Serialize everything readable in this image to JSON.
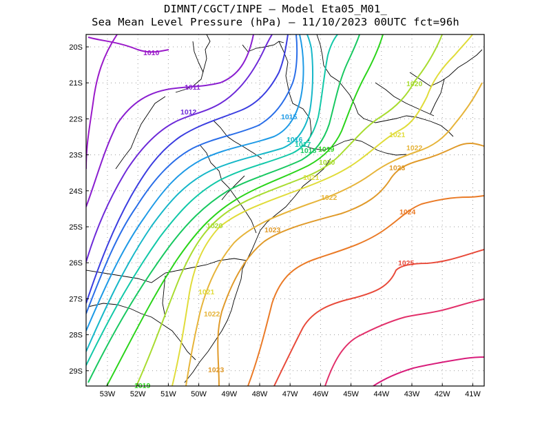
{
  "header": {
    "line1": "DIMNT/CGCT/INPE –  Model Eta05_M01_",
    "line2": "Sea Mean Level Pressure (hPa) – 11/10/2023 00UTC fct=96h"
  },
  "map": {
    "lon_labels": [
      "53W",
      "52W",
      "51W",
      "50W",
      "49W",
      "48W",
      "47W",
      "46W",
      "45W",
      "44W",
      "43W",
      "42W",
      "41W"
    ],
    "lat_labels": [
      "20S",
      "21S",
      "22S",
      "23S",
      "24S",
      "25S",
      "26S",
      "27S",
      "28S",
      "29S"
    ],
    "grid": "dotted"
  },
  "contours": [
    {
      "level": "1010",
      "color": "#9a19c9"
    },
    {
      "level": "1011",
      "color": "#8a1fd0"
    },
    {
      "level": "1012",
      "color": "#6d2ad8"
    },
    {
      "level": "1013",
      "color": "#3a3de0"
    },
    {
      "level": "1014",
      "color": "#2a6ee8"
    },
    {
      "level": "1015",
      "color": "#1e9ae6"
    },
    {
      "level": "1016",
      "color": "#16b7c8"
    },
    {
      "level": "1017",
      "color": "#12c8a8"
    },
    {
      "level": "1018",
      "color": "#18c860"
    },
    {
      "level": "1019",
      "color": "#2ad41a"
    },
    {
      "level": "1020",
      "color": "#a8dc30"
    },
    {
      "level": "1021",
      "color": "#e0dc3a"
    },
    {
      "level": "1022",
      "color": "#e6b43a"
    },
    {
      "level": "1023",
      "color": "#e09a2a"
    },
    {
      "level": "1024",
      "color": "#ea7a26"
    },
    {
      "level": "1025",
      "color": "#e84a3a"
    },
    {
      "level": "1026",
      "color": "#e2306a"
    },
    {
      "level": "1027",
      "color": "#d81c7a"
    }
  ],
  "labels": [
    {
      "text": "1010",
      "color": "#9a19c9"
    },
    {
      "text": "1011",
      "color": "#8a1fd0"
    },
    {
      "text": "1012",
      "color": "#6d2ad8"
    },
    {
      "text": "1015",
      "color": "#1e9ae6"
    },
    {
      "text": "1016",
      "color": "#16b7c8"
    },
    {
      "text": "1017",
      "color": "#12c8a8"
    },
    {
      "text": "1018",
      "color": "#18c860"
    },
    {
      "text": "1019",
      "color": "#2ad41a"
    },
    {
      "text": "1020",
      "color": "#a8dc30"
    },
    {
      "text": "1021",
      "color": "#e0dc3a"
    },
    {
      "text": "1022",
      "color": "#e6b43a"
    },
    {
      "text": "1023",
      "color": "#e09a2a"
    },
    {
      "text": "1020",
      "color": "#a8dc30"
    },
    {
      "text": "1021",
      "color": "#e0dc3a"
    },
    {
      "text": "1022",
      "color": "#e6b43a"
    },
    {
      "text": "1023",
      "color": "#e09a2a"
    },
    {
      "text": "1024",
      "color": "#ea7a26"
    },
    {
      "text": "1025",
      "color": "#e84a3a"
    },
    {
      "text": "1020",
      "color": "#a8dc30"
    },
    {
      "text": "1021",
      "color": "#e0dc3a"
    },
    {
      "text": "1022",
      "color": "#e6b43a"
    },
    {
      "text": "1023",
      "color": "#e09a2a"
    },
    {
      "text": "1019",
      "color": "#2ad41a"
    }
  ]
}
